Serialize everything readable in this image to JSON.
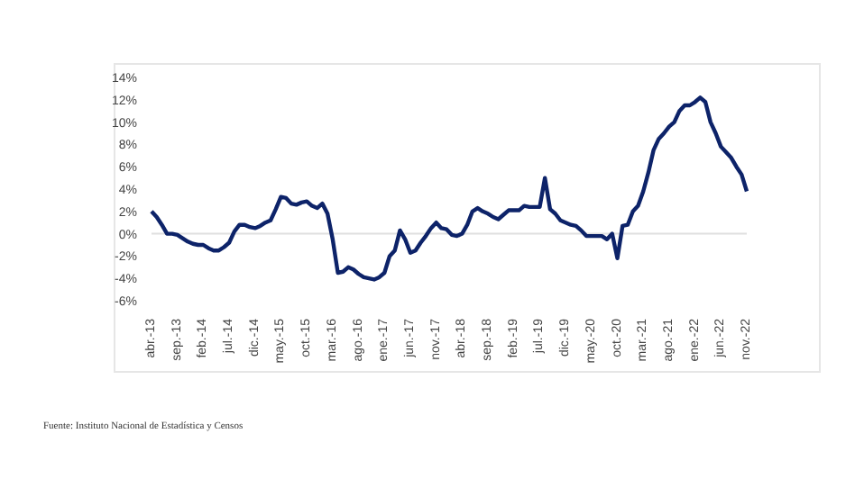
{
  "chart_data": {
    "type": "line",
    "categories": [
      "abr.-13",
      null,
      null,
      null,
      null,
      "sep.-13",
      null,
      null,
      null,
      null,
      "feb.-14",
      null,
      null,
      null,
      null,
      "jul.-14",
      null,
      null,
      null,
      null,
      "dic.-14",
      null,
      null,
      null,
      null,
      "may.-15",
      null,
      null,
      null,
      null,
      "oct.-15",
      null,
      null,
      null,
      null,
      "mar.-16",
      null,
      null,
      null,
      null,
      "ago.-16",
      null,
      null,
      null,
      null,
      "ene.-17",
      null,
      null,
      null,
      null,
      "jun.-17",
      null,
      null,
      null,
      null,
      "nov.-17",
      null,
      null,
      null,
      null,
      "abr.-18",
      null,
      null,
      null,
      null,
      "sep.-18",
      null,
      null,
      null,
      null,
      "feb.-19",
      null,
      null,
      null,
      null,
      "jul.-19",
      null,
      null,
      null,
      null,
      "dic.-19",
      null,
      null,
      null,
      null,
      "may.-20",
      null,
      null,
      null,
      null,
      "oct.-20",
      null,
      null,
      null,
      null,
      "mar.-21",
      null,
      null,
      null,
      null,
      "ago.-21",
      null,
      null,
      null,
      null,
      "ene.-22",
      null,
      null,
      null,
      null,
      "jun.-22",
      null,
      null,
      null,
      null,
      "nov.-22"
    ],
    "series": [
      {
        "color": "#0d2369",
        "values": [
          2.0,
          1.5,
          0.8,
          0.0,
          0.0,
          -0.1,
          -0.4,
          -0.7,
          -0.9,
          -1.0,
          -1.0,
          -1.3,
          -1.5,
          -1.5,
          -1.2,
          -0.8,
          0.2,
          0.8,
          0.8,
          0.6,
          0.5,
          0.7,
          1.0,
          1.2,
          2.2,
          3.3,
          3.2,
          2.7,
          2.6,
          2.8,
          2.9,
          2.5,
          2.3,
          2.7,
          1.8,
          -0.5,
          -3.5,
          -3.4,
          -3.0,
          -3.2,
          -3.6,
          -3.9,
          -4.0,
          -4.1,
          -3.9,
          -3.5,
          -2.0,
          -1.5,
          0.3,
          -0.5,
          -1.7,
          -1.5,
          -0.8,
          -0.2,
          0.5,
          1.0,
          0.5,
          0.4,
          -0.1,
          -0.2,
          0.0,
          0.8,
          2.0,
          2.3,
          2.0,
          1.8,
          1.5,
          1.3,
          1.7,
          2.1,
          2.1,
          2.1,
          2.5,
          2.4,
          2.4,
          2.4,
          5.0,
          2.2,
          1.8,
          1.2,
          1.0,
          0.8,
          0.7,
          0.3,
          -0.2,
          -0.2,
          -0.2,
          -0.2,
          -0.5,
          0.0,
          -2.2,
          0.7,
          0.8,
          2.0,
          2.5,
          3.8,
          5.5,
          7.5,
          8.5,
          9.0,
          9.6,
          10.0,
          11.0,
          11.5,
          11.5,
          11.8,
          12.2,
          11.8,
          10.0,
          9.0,
          7.8,
          7.3,
          6.8,
          6.0,
          5.3,
          3.8
        ]
      }
    ],
    "ylim": [
      -6,
      14
    ],
    "yticks": [
      {
        "value": -6,
        "label": "-6%"
      },
      {
        "value": -4,
        "label": "-4%"
      },
      {
        "value": -2,
        "label": "-2%"
      },
      {
        "value": 0,
        "label": "0%"
      },
      {
        "value": 2,
        "label": "2%"
      },
      {
        "value": 4,
        "label": "4%"
      },
      {
        "value": 6,
        "label": "6%"
      },
      {
        "value": 8,
        "label": "8%"
      },
      {
        "value": 10,
        "label": "10%"
      },
      {
        "value": 12,
        "label": "12%"
      },
      {
        "value": 14,
        "label": "14%"
      }
    ],
    "ref_lines": [
      {
        "axis": "y",
        "value": 0,
        "color": "#e0e0e0"
      }
    ],
    "marker": "none",
    "line_style": "solid",
    "grid": false,
    "legend": false,
    "annotations": [
      "Fuente: Instituto Nacional de Estadística y Censos"
    ]
  }
}
